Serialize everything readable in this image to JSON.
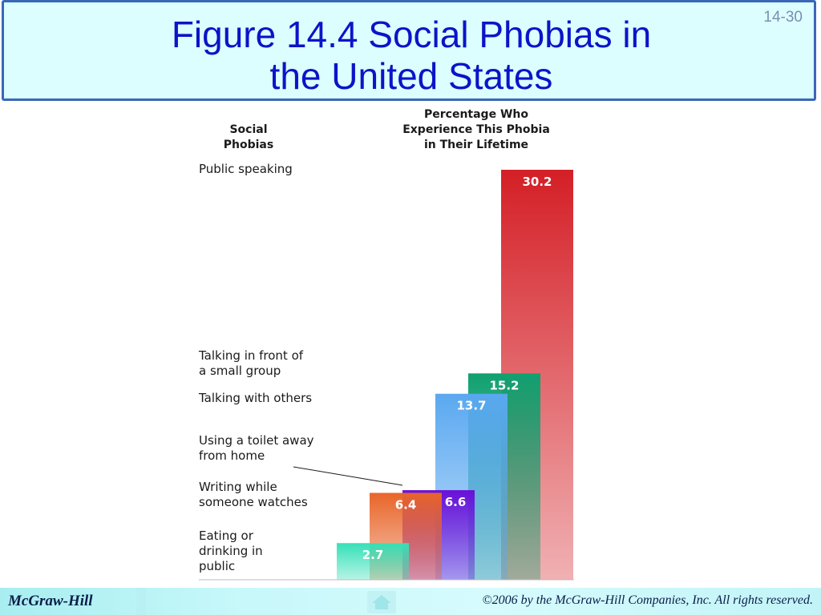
{
  "slide": {
    "title_line1": "Figure 14.4  Social Phobias in",
    "title_line2": "the United States",
    "number": "14-30"
  },
  "footer": {
    "publisher": "McGraw-Hill",
    "copyright": "©2006 by the McGraw-Hill Companies, Inc. All rights reserved.",
    "nav_icon": "home-icon"
  },
  "chart_data": {
    "type": "bar",
    "left_header": [
      "Social",
      "Phobias"
    ],
    "right_header": [
      "Percentage Who",
      "Experience This Phobia",
      "in Their Lifetime"
    ],
    "categories": [
      "Eating or drinking in public",
      "Writing while someone watches",
      "Using a toilet away from home",
      "Talking with others",
      "Talking in front of a small group",
      "Public speaking"
    ],
    "category_label_lines": [
      [
        "Eating or",
        "drinking in",
        "public"
      ],
      [
        "Writing while",
        "someone watches"
      ],
      [
        "Using a toilet away",
        "from home"
      ],
      [
        "Talking with others"
      ],
      [
        "Talking in front of",
        "a small group"
      ],
      [
        "Public speaking"
      ]
    ],
    "values": [
      2.7,
      6.4,
      6.6,
      13.7,
      15.2,
      30.2
    ],
    "value_labels": [
      "2.7",
      "6.4",
      "6.6",
      "13.7",
      "15.2",
      "30.2"
    ],
    "colors": [
      "#35e0b8",
      "#e8652a",
      "#6a10d8",
      "#5aa8f0",
      "#10a070",
      "#d41f26"
    ],
    "ylim": [
      0,
      30.2
    ],
    "grid": false,
    "legend": "none"
  }
}
